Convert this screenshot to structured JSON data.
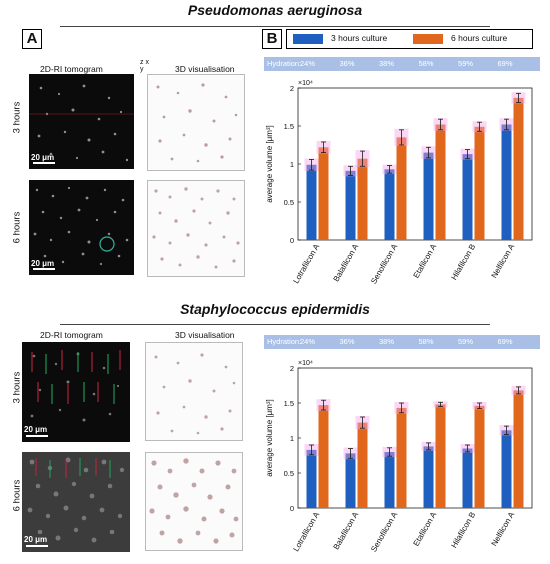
{
  "titles": {
    "top": "Pseudomonas aeruginosa",
    "bottom": "Staphylococcus epidermidis"
  },
  "panels": {
    "a": "A",
    "b": "B"
  },
  "image_labels": {
    "tomogram": "2D-RI tomogram",
    "visualisation": "3D visualisation",
    "hours3": "3 hours",
    "hours6": "6 hours",
    "scale": "20 μm"
  },
  "legend": {
    "series3": "3 hours culture",
    "series6": "6 hours culture"
  },
  "hydration": {
    "label": "Hydration:",
    "values": [
      "24%",
      "36%",
      "38%",
      "58%",
      "59%",
      "69%"
    ]
  },
  "colors": {
    "series3": "#1f5fbf",
    "series6": "#e0671c",
    "hydration_bar": "#a9bfe6",
    "error_glow": "#f4a6e8"
  },
  "chart_data": [
    {
      "type": "bar",
      "title": "",
      "ylabel": "average volume [μm³]",
      "multiplier": "×10⁴",
      "categories": [
        "Lotrafilcon A",
        "Balafilcon A",
        "Senofilcon A",
        "Etafilcon A",
        "Hilafilcon B",
        "Nelfilcon A"
      ],
      "ylim": [
        0,
        2
      ],
      "yticks": [
        "0",
        "0.5",
        "1",
        "1.5",
        "2"
      ],
      "series": [
        {
          "name": "3 hours culture",
          "values": [
            0.99,
            0.91,
            0.93,
            1.15,
            1.13,
            1.52
          ],
          "errors": [
            0.07,
            0.06,
            0.05,
            0.07,
            0.06,
            0.07
          ]
        },
        {
          "name": "6 hours culture",
          "values": [
            1.22,
            1.07,
            1.35,
            1.52,
            1.49,
            1.87
          ],
          "errors": [
            0.07,
            0.1,
            0.1,
            0.07,
            0.06,
            0.06
          ]
        }
      ]
    },
    {
      "type": "bar",
      "title": "",
      "ylabel": "average volume [μm³]",
      "multiplier": "×10⁴",
      "categories": [
        "Lotrafilcon A",
        "Balafilcon A",
        "Senofilcon A",
        "Etafilcon A",
        "Hilafilcon B",
        "Nelfilcon A"
      ],
      "ylim": [
        0,
        2
      ],
      "yticks": [
        "0",
        "0.5",
        "1",
        "1.5",
        "2"
      ],
      "series": [
        {
          "name": "3 hours culture",
          "values": [
            0.83,
            0.78,
            0.8,
            0.88,
            0.85,
            1.11
          ],
          "errors": [
            0.07,
            0.07,
            0.06,
            0.05,
            0.05,
            0.06
          ]
        },
        {
          "name": "6 hours culture",
          "values": [
            1.47,
            1.22,
            1.43,
            1.48,
            1.46,
            1.68
          ],
          "errors": [
            0.07,
            0.08,
            0.07,
            0.03,
            0.04,
            0.05
          ]
        }
      ]
    }
  ]
}
